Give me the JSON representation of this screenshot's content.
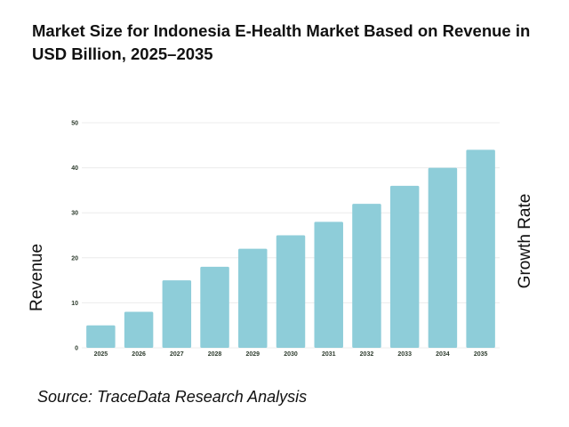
{
  "chart_data": {
    "type": "bar",
    "title": "Market Size for Indonesia E-Health Market Based on Revenue in USD Billion, 2025–2035",
    "ylabel": "Revenue",
    "ylabel_right": "Growth Rate",
    "xlabel": "",
    "categories": [
      "2025",
      "2026",
      "2027",
      "2028",
      "2029",
      "2030",
      "2031",
      "2032",
      "2033",
      "2034",
      "2035"
    ],
    "values": [
      5,
      8,
      15,
      18,
      22,
      25,
      28,
      32,
      36,
      40,
      44
    ],
    "ylim": [
      0,
      50
    ],
    "yticks": [
      "0",
      "10",
      "20",
      "30",
      "40",
      "50"
    ],
    "grid": true,
    "bar_color": "#8ecdd9",
    "source": "Source: TraceData Research Analysis"
  }
}
